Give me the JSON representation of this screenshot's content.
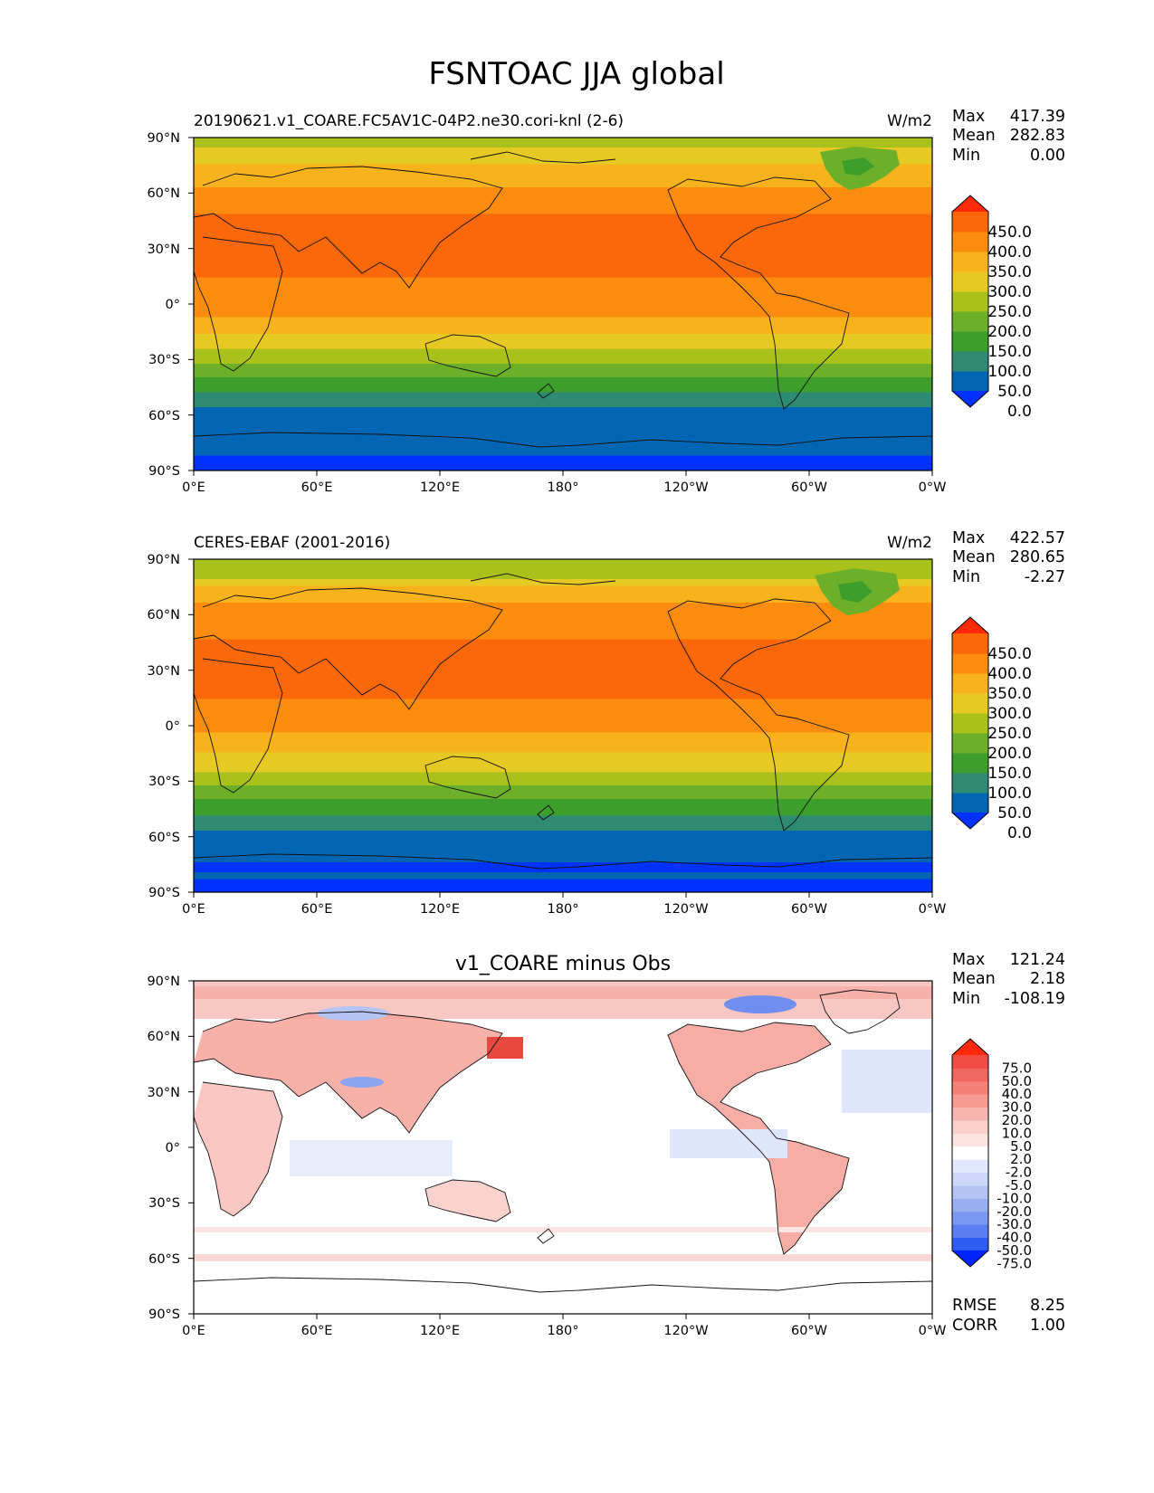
{
  "figure": {
    "title": "FSNTOAC JJA global"
  },
  "lat_ticks": [
    "90°N",
    "60°N",
    "30°N",
    "0°",
    "30°S",
    "60°S",
    "90°S"
  ],
  "lon_ticks": [
    "0°E",
    "60°E",
    "120°E",
    "180°",
    "120°W",
    "60°W",
    "0°W"
  ],
  "panels": [
    {
      "left_label": "20190621.v1_COARE.FC5AV1C-04P2.ne30.cori-knl (2-6)",
      "center_title": "",
      "units": "W/m2",
      "stats": [
        {
          "label": "Max",
          "value": "417.39"
        },
        {
          "label": "Mean",
          "value": "282.83"
        },
        {
          "label": "Min",
          "value": "0.00"
        }
      ],
      "colorbar": {
        "labels": [
          "450.0",
          "400.0",
          "350.0",
          "300.0",
          "250.0",
          "200.0",
          "150.0",
          "100.0",
          "50.0",
          "0.0"
        ],
        "colors": [
          "#0032ff",
          "#0066b4",
          "#2e8a73",
          "#3d9e2b",
          "#6cb02a",
          "#a9c11b",
          "#e7c923",
          "#f8b31c",
          "#fb8c0e",
          "#fa680a",
          "#ff2a0a"
        ],
        "over_color": "#ff2a0a",
        "under_color": "#0032ff"
      }
    },
    {
      "left_label": "CERES-EBAF (2001-2016)",
      "center_title": "",
      "units": "W/m2",
      "stats": [
        {
          "label": "Max",
          "value": "422.57"
        },
        {
          "label": "Mean",
          "value": "280.65"
        },
        {
          "label": "Min",
          "value": "-2.27"
        }
      ],
      "colorbar": {
        "labels": [
          "450.0",
          "400.0",
          "350.0",
          "300.0",
          "250.0",
          "200.0",
          "150.0",
          "100.0",
          "50.0",
          "0.0"
        ],
        "colors": [
          "#0032ff",
          "#0066b4",
          "#2e8a73",
          "#3d9e2b",
          "#6cb02a",
          "#a9c11b",
          "#e7c923",
          "#f8b31c",
          "#fb8c0e",
          "#fa680a",
          "#ff2a0a"
        ],
        "over_color": "#ff2a0a",
        "under_color": "#0032ff"
      }
    },
    {
      "left_label": "",
      "center_title": "v1_COARE minus Obs",
      "units": "",
      "stats": [
        {
          "label": "Max",
          "value": "121.24"
        },
        {
          "label": "Mean",
          "value": "2.18"
        },
        {
          "label": "Min",
          "value": "-108.19"
        }
      ],
      "colorbar": {
        "labels": [
          "75.0",
          "50.0",
          "40.0",
          "30.0",
          "20.0",
          "10.0",
          "5.0",
          "2.0",
          "-2.0",
          "-5.0",
          "-10.0",
          "-20.0",
          "-30.0",
          "-40.0",
          "-50.0",
          "-75.0"
        ],
        "colors": [
          "#0022ff",
          "#2f5cf0",
          "#5a7ef2",
          "#7a97f2",
          "#98aff2",
          "#b4c5f5",
          "#ccd7f8",
          "#e1e8fb",
          "#ffffff",
          "#fde4e2",
          "#fbcfcb",
          "#f8b4ae",
          "#f69a92",
          "#f48078",
          "#f26660",
          "#f04c44",
          "#ff2a0a"
        ],
        "over_color": "#ff2a0a",
        "under_color": "#0022ff"
      },
      "extra_stats": [
        {
          "label": "RMSE",
          "value": "8.25"
        },
        {
          "label": "CORR",
          "value": "1.00"
        }
      ]
    }
  ]
}
